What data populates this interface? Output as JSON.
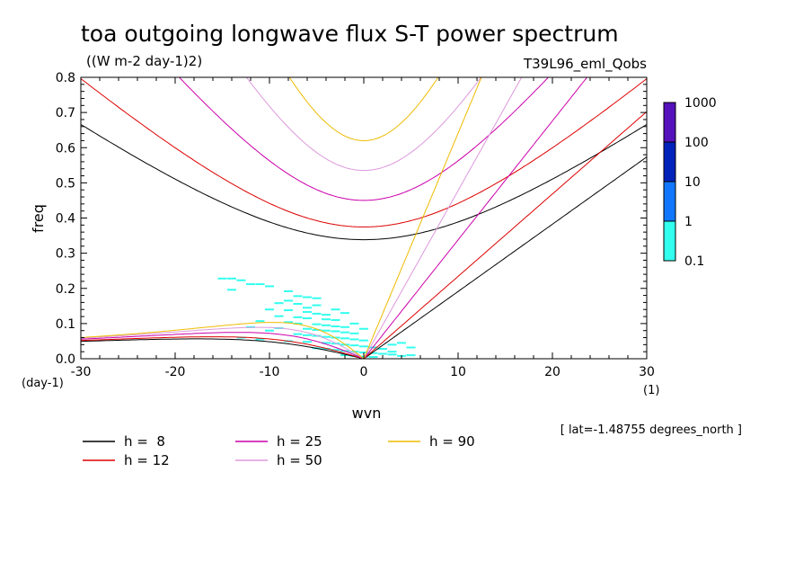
{
  "chart_data": {
    "type": "line",
    "title": "toa outgoing longwave flux S-T power spectrum",
    "subtitle": "((W m-2 day-1)2)",
    "experiment_label": "T39L96_eml_Qobs",
    "xlabel": "wvn",
    "ylabel": "freq",
    "x_units": "(1)",
    "y_units": "(day-1)",
    "xlim": [
      -30,
      30
    ],
    "ylim": [
      0,
      0.8
    ],
    "x_ticks": [
      "-30",
      "-20",
      "-10",
      "0",
      "10",
      "20",
      "30"
    ],
    "y_ticks": [
      "0.0",
      "0.1",
      "0.2",
      "0.3",
      "0.4",
      "0.5",
      "0.6",
      "0.7",
      "0.8"
    ],
    "latitude_note": "[ lat=-1.48755 degrees_north ]",
    "dispersion_curves": [
      {
        "name": "h =  8",
        "h": 8,
        "color": "#000000"
      },
      {
        "name": "h = 12",
        "h": 12,
        "color": "#dd0000"
      },
      {
        "name": "h = 25",
        "h": 25,
        "color": "#cc00aa"
      },
      {
        "name": "h = 50",
        "h": 50,
        "color": "#dd99dd"
      },
      {
        "name": "h = 90",
        "h": 90,
        "color": "#eebb00"
      }
    ],
    "colorbar": {
      "levels": [
        "0.1",
        "1",
        "10",
        "100",
        "1000"
      ],
      "colors": [
        "#33ffee",
        "#1177ff",
        "#0022bb",
        "#5511bb"
      ]
    },
    "spectrum_cells": [
      [
        -15,
        0.228
      ],
      [
        -14,
        0.228
      ],
      [
        -13,
        0.223
      ],
      [
        -11,
        0.212
      ],
      [
        -12,
        0.212
      ],
      [
        -10,
        0.206
      ],
      [
        -14,
        0.196
      ],
      [
        -8,
        0.192
      ],
      [
        -7,
        0.178
      ],
      [
        -6,
        0.175
      ],
      [
        -5,
        0.172
      ],
      [
        -8,
        0.165
      ],
      [
        -9,
        0.158
      ],
      [
        -7,
        0.156
      ],
      [
        -5,
        0.152
      ],
      [
        -6,
        0.145
      ],
      [
        -10,
        0.14
      ],
      [
        -8,
        0.138
      ],
      [
        -6,
        0.133
      ],
      [
        -5,
        0.128
      ],
      [
        -4,
        0.125
      ],
      [
        -9,
        0.121
      ],
      [
        -7,
        0.118
      ],
      [
        -6,
        0.115
      ],
      [
        -4,
        0.112
      ],
      [
        -3,
        0.11
      ],
      [
        -11,
        0.107
      ],
      [
        -8,
        0.104
      ],
      [
        -7,
        0.1
      ],
      [
        -5,
        0.098
      ],
      [
        -4,
        0.095
      ],
      [
        -3,
        0.092
      ],
      [
        -2,
        0.09
      ],
      [
        -9,
        0.087
      ],
      [
        -6,
        0.085
      ],
      [
        -5,
        0.082
      ],
      [
        -4,
        0.08
      ],
      [
        -3,
        0.078
      ],
      [
        -2,
        0.075
      ],
      [
        -1,
        0.072
      ],
      [
        -7,
        0.07
      ],
      [
        -6,
        0.067
      ],
      [
        -5,
        0.065
      ],
      [
        -4,
        0.062
      ],
      [
        -3,
        0.06
      ],
      [
        -2,
        0.058
      ],
      [
        -1,
        0.055
      ],
      [
        0,
        0.052
      ],
      [
        -8,
        0.05
      ],
      [
        -6,
        0.048
      ],
      [
        -4,
        0.045
      ],
      [
        -3,
        0.043
      ],
      [
        -2,
        0.04
      ],
      [
        -1,
        0.038
      ],
      [
        0,
        0.035
      ],
      [
        1,
        0.032
      ],
      [
        -5,
        0.03
      ],
      [
        -4,
        0.028
      ],
      [
        -3,
        0.025
      ],
      [
        -2,
        0.022
      ],
      [
        -1,
        0.02
      ],
      [
        0,
        0.018
      ],
      [
        1,
        0.016
      ],
      [
        2,
        0.014
      ],
      [
        3,
        0.012
      ],
      [
        -2,
        0.01
      ],
      [
        -1,
        0.008
      ],
      [
        0,
        0.006
      ],
      [
        1,
        0.005
      ],
      [
        2,
        0.028
      ],
      [
        3,
        0.04
      ],
      [
        4,
        0.045
      ],
      [
        5,
        0.032
      ],
      [
        -12,
        0.09
      ],
      [
        -10,
        0.08
      ],
      [
        -13,
        0.06
      ],
      [
        -11,
        0.055
      ],
      [
        3,
        0.02
      ],
      [
        4,
        0.008
      ],
      [
        5,
        0.01
      ],
      [
        -2,
        0.13
      ],
      [
        -3,
        0.14
      ],
      [
        -1,
        0.1
      ],
      [
        0,
        0.085
      ]
    ]
  },
  "legend": [
    {
      "label": "h =  8",
      "color": "#000000"
    },
    {
      "label": "h = 12",
      "color": "#dd0000"
    },
    {
      "label": "h = 25",
      "color": "#cc00aa"
    },
    {
      "label": "h = 50",
      "color": "#dd99dd"
    },
    {
      "label": "h = 90",
      "color": "#eebb00"
    }
  ]
}
